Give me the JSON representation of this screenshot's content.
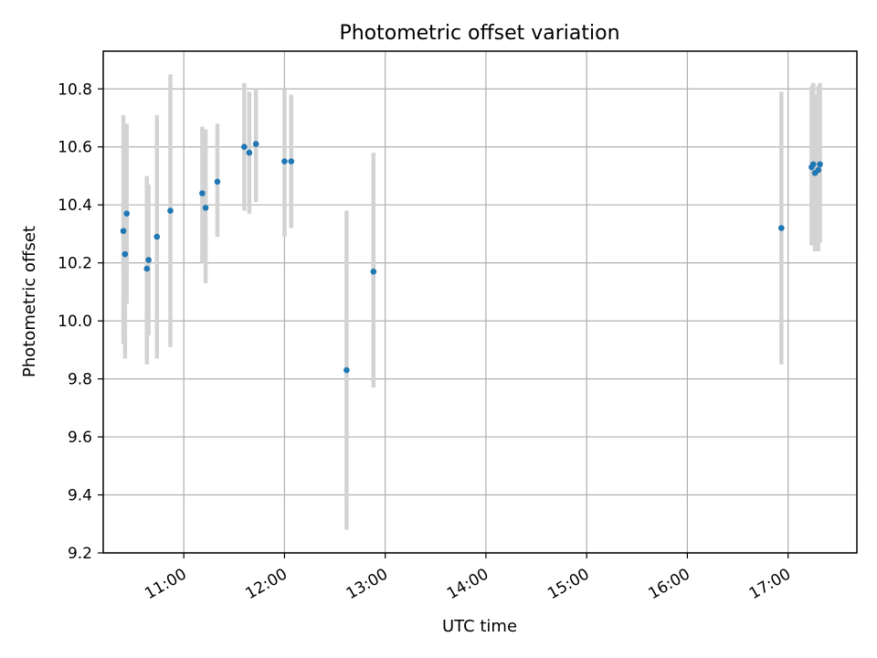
{
  "chart_data": {
    "type": "scatter",
    "title": "Photometric offset variation",
    "xlabel": "UTC time",
    "ylabel": "Photometric offset",
    "x_axis": "time",
    "xlim": [
      "10:12",
      "17:41"
    ],
    "ylim": [
      9.2,
      10.93
    ],
    "xticks": [
      "11:00",
      "12:00",
      "13:00",
      "14:00",
      "15:00",
      "16:00",
      "17:00"
    ],
    "yticks": [
      "9.2",
      "9.4",
      "9.6",
      "9.8",
      "10.0",
      "10.2",
      "10.4",
      "10.6",
      "10.8"
    ],
    "grid": true,
    "legend": null,
    "colors": {
      "marker": "#1f77b4",
      "errorbar": "#d3d3d3",
      "grid": "#b0b0b0",
      "axis": "#000000"
    },
    "points": [
      {
        "x": "10:24",
        "y": 10.31,
        "err_low": 9.92,
        "err_high": 10.71
      },
      {
        "x": "10:25",
        "y": 10.23,
        "err_low": 9.87,
        "err_high": 10.58
      },
      {
        "x": "10:26",
        "y": 10.37,
        "err_low": 10.06,
        "err_high": 10.68
      },
      {
        "x": "10:38",
        "y": 10.18,
        "err_low": 9.85,
        "err_high": 10.5
      },
      {
        "x": "10:39",
        "y": 10.21,
        "err_low": 9.95,
        "err_high": 10.47
      },
      {
        "x": "10:44",
        "y": 10.29,
        "err_low": 9.87,
        "err_high": 10.71
      },
      {
        "x": "10:52",
        "y": 10.38,
        "err_low": 9.91,
        "err_high": 10.85
      },
      {
        "x": "11:11",
        "y": 10.44,
        "err_low": 10.2,
        "err_high": 10.67
      },
      {
        "x": "11:13",
        "y": 10.39,
        "err_low": 10.13,
        "err_high": 10.66
      },
      {
        "x": "11:20",
        "y": 10.48,
        "err_low": 10.29,
        "err_high": 10.68
      },
      {
        "x": "11:36",
        "y": 10.6,
        "err_low": 10.38,
        "err_high": 10.82
      },
      {
        "x": "11:39",
        "y": 10.58,
        "err_low": 10.37,
        "err_high": 10.79
      },
      {
        "x": "11:43",
        "y": 10.61,
        "err_low": 10.41,
        "err_high": 10.8
      },
      {
        "x": "12:00",
        "y": 10.55,
        "err_low": 10.29,
        "err_high": 10.8
      },
      {
        "x": "12:04",
        "y": 10.55,
        "err_low": 10.32,
        "err_high": 10.78
      },
      {
        "x": "12:37",
        "y": 9.83,
        "err_low": 9.28,
        "err_high": 10.38
      },
      {
        "x": "12:53",
        "y": 10.17,
        "err_low": 9.77,
        "err_high": 10.58
      },
      {
        "x": "16:56",
        "y": 10.32,
        "err_low": 9.85,
        "err_high": 10.79
      },
      {
        "x": "17:14",
        "y": 10.53,
        "err_low": 10.26,
        "err_high": 10.81
      },
      {
        "x": "17:15",
        "y": 10.54,
        "err_low": 10.27,
        "err_high": 10.82
      },
      {
        "x": "17:16",
        "y": 10.51,
        "err_low": 10.24,
        "err_high": 10.78
      },
      {
        "x": "17:18",
        "y": 10.52,
        "err_low": 10.24,
        "err_high": 10.81
      },
      {
        "x": "17:19",
        "y": 10.54,
        "err_low": 10.27,
        "err_high": 10.82
      }
    ]
  }
}
